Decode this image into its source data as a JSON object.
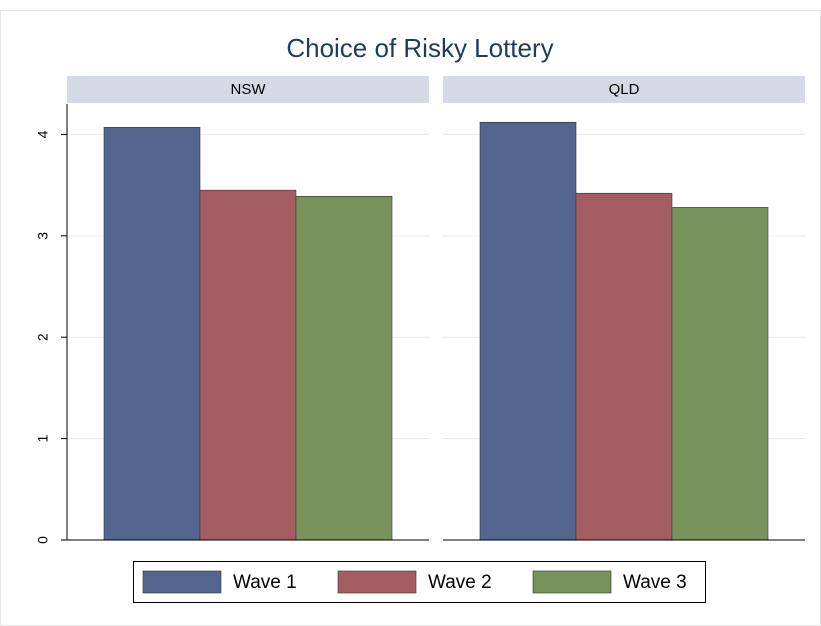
{
  "chart_data": {
    "type": "bar",
    "title": "Choice of Risky Lottery",
    "panels": [
      "NSW",
      "QLD"
    ],
    "series": [
      {
        "name": "Wave 1",
        "color": "#52658f",
        "values": [
          4.07,
          4.12
        ]
      },
      {
        "name": "Wave 2",
        "color": "#a35d61",
        "values": [
          3.45,
          3.42
        ]
      },
      {
        "name": "Wave 3",
        "color": "#77925a",
        "values": [
          3.39,
          3.28
        ]
      }
    ],
    "ylim": [
      0,
      4.3
    ],
    "yticks": [
      0,
      1,
      2,
      3,
      4
    ],
    "grid": true,
    "legend": "bottom"
  }
}
